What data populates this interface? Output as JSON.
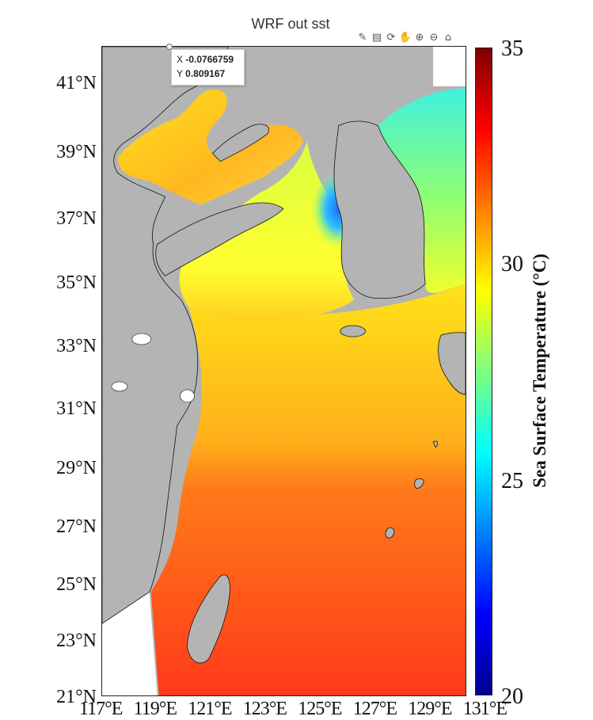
{
  "title": "WRF out sst",
  "toolbar": [
    {
      "name": "brush-icon",
      "glyph": "✎"
    },
    {
      "name": "legend-icon",
      "glyph": "▤"
    },
    {
      "name": "rotate-icon",
      "glyph": "⟳"
    },
    {
      "name": "pan-hand-icon",
      "glyph": "✋"
    },
    {
      "name": "zoom-in-icon",
      "glyph": "⊕"
    },
    {
      "name": "zoom-out-icon",
      "glyph": "⊖"
    },
    {
      "name": "home-icon",
      "glyph": "⌂"
    }
  ],
  "datatip": {
    "x_label": "X",
    "x_value": "-0.0766759",
    "y_label": "Y",
    "y_value": "0.809167"
  },
  "axes": {
    "y_ticks": [
      "41°N",
      "39°N",
      "37°N",
      "35°N",
      "33°N",
      "31°N",
      "29°N",
      "27°N",
      "25°N",
      "23°N",
      "21°N"
    ],
    "x_ticks": [
      "117°E",
      "119°E",
      "121°E",
      "123°E",
      "125°E",
      "127°E",
      "129°E",
      "131°E"
    ]
  },
  "colorbar": {
    "label": "Sea Surface Temperature (°C)",
    "ticks": [
      "35",
      "30",
      "25",
      "20"
    ],
    "range": [
      20,
      35
    ],
    "colormap": [
      "#00008f",
      "#0000ff",
      "#0080ff",
      "#00ffff",
      "#80ff80",
      "#ffff00",
      "#ff8000",
      "#ff0000",
      "#800000"
    ]
  },
  "colors": {
    "land": "#b4b4b4",
    "warm_sea": "#ff3a1a",
    "mid_sea": "#ff8c1a",
    "cool_sea": "#ffd71a",
    "yellow_sea": "#e0ff3a",
    "cold_spot": "#1a8cff",
    "japan_sea": "#40f0e0"
  }
}
